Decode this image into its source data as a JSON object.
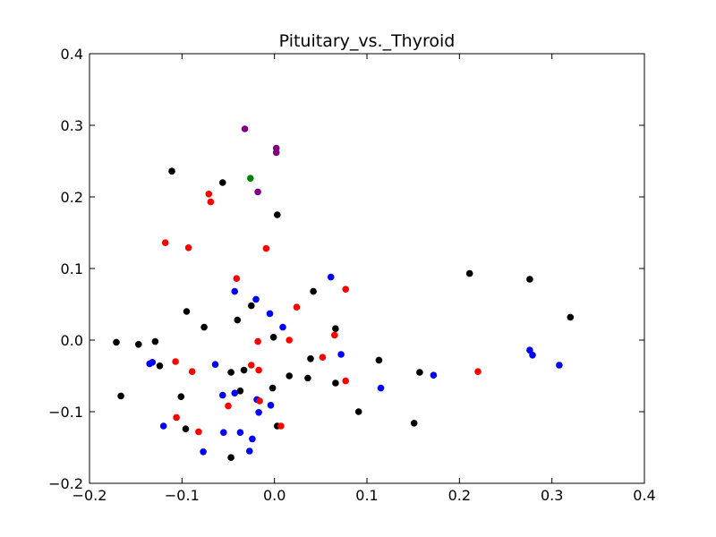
{
  "chart_data": {
    "type": "scatter",
    "title": "Pituitary_vs._Thyroid",
    "xlabel": "",
    "ylabel": "",
    "xlim": [
      -0.2,
      0.4
    ],
    "ylim": [
      -0.2,
      0.4
    ],
    "x_ticks": [
      "−0.2",
      "−0.1",
      "0.0",
      "0.1",
      "0.2",
      "0.3",
      "0.4"
    ],
    "y_ticks": [
      "−0.2",
      "−0.1",
      "0.0",
      "0.1",
      "0.2",
      "0.3",
      "0.4"
    ],
    "x_tick_values": [
      -0.2,
      -0.1,
      0.0,
      0.1,
      0.2,
      0.3,
      0.4
    ],
    "y_tick_values": [
      -0.2,
      -0.1,
      0.0,
      0.1,
      0.2,
      0.3,
      0.4
    ],
    "grid": false,
    "series": [
      {
        "color": "#000000",
        "points": [
          [
            -0.171,
            -0.003
          ],
          [
            -0.166,
            -0.078
          ],
          [
            -0.147,
            -0.006
          ],
          [
            -0.129,
            -0.002
          ],
          [
            -0.124,
            -0.036
          ],
          [
            -0.111,
            0.236
          ],
          [
            -0.101,
            -0.079
          ],
          [
            -0.096,
            -0.124
          ],
          [
            -0.095,
            0.04
          ],
          [
            -0.076,
            0.018
          ],
          [
            -0.056,
            0.22
          ],
          [
            -0.047,
            -0.045
          ],
          [
            -0.047,
            -0.164
          ],
          [
            -0.04,
            0.028
          ],
          [
            -0.037,
            -0.071
          ],
          [
            -0.033,
            -0.042
          ],
          [
            -0.025,
            0.048
          ],
          [
            -0.002,
            -0.067
          ],
          [
            -0.001,
            0.004
          ],
          [
            0.003,
            0.175
          ],
          [
            0.003,
            -0.12
          ],
          [
            0.016,
            -0.05
          ],
          [
            0.036,
            -0.053
          ],
          [
            0.039,
            -0.026
          ],
          [
            0.042,
            0.068
          ],
          [
            0.066,
            0.016
          ],
          [
            0.066,
            -0.06
          ],
          [
            0.091,
            -0.1
          ],
          [
            0.113,
            -0.028
          ],
          [
            0.151,
            -0.116
          ],
          [
            0.157,
            -0.045
          ],
          [
            0.211,
            0.093
          ],
          [
            0.276,
            0.085
          ],
          [
            0.32,
            0.032
          ]
        ]
      },
      {
        "color": "#0000ff",
        "points": [
          [
            -0.135,
            -0.033
          ],
          [
            -0.132,
            -0.031
          ],
          [
            -0.12,
            -0.12
          ],
          [
            -0.077,
            -0.156
          ],
          [
            -0.064,
            -0.034
          ],
          [
            -0.056,
            -0.077
          ],
          [
            -0.055,
            -0.129
          ],
          [
            -0.043,
            -0.074
          ],
          [
            -0.043,
            0.068
          ],
          [
            -0.037,
            -0.129
          ],
          [
            -0.027,
            -0.155
          ],
          [
            -0.024,
            -0.138
          ],
          [
            -0.02,
            0.057
          ],
          [
            -0.019,
            -0.083
          ],
          [
            -0.017,
            -0.101
          ],
          [
            -0.005,
            0.037
          ],
          [
            -0.004,
            -0.091
          ],
          [
            0.009,
            0.018
          ],
          [
            0.061,
            0.088
          ],
          [
            0.072,
            -0.02
          ],
          [
            0.115,
            -0.067
          ],
          [
            0.172,
            -0.049
          ],
          [
            0.276,
            -0.014
          ],
          [
            0.279,
            -0.021
          ],
          [
            0.308,
            -0.035
          ]
        ]
      },
      {
        "color": "#ff0000",
        "points": [
          [
            -0.118,
            0.136
          ],
          [
            -0.107,
            -0.03
          ],
          [
            -0.106,
            -0.108
          ],
          [
            -0.093,
            0.129
          ],
          [
            -0.089,
            -0.044
          ],
          [
            -0.082,
            -0.128
          ],
          [
            -0.071,
            0.204
          ],
          [
            -0.069,
            0.193
          ],
          [
            -0.05,
            -0.092
          ],
          [
            -0.041,
            0.086
          ],
          [
            -0.025,
            -0.035
          ],
          [
            -0.018,
            -0.002
          ],
          [
            -0.017,
            -0.042
          ],
          [
            -0.016,
            -0.085
          ],
          [
            -0.009,
            0.128
          ],
          [
            0.007,
            -0.12
          ],
          [
            0.016,
            0.0
          ],
          [
            0.024,
            0.046
          ],
          [
            0.052,
            -0.024
          ],
          [
            0.065,
            0.007
          ],
          [
            0.077,
            0.071
          ],
          [
            0.077,
            -0.057
          ],
          [
            0.22,
            -0.044
          ]
        ]
      },
      {
        "color": "#800080",
        "points": [
          [
            -0.032,
            0.295
          ],
          [
            0.002,
            0.268
          ],
          [
            0.002,
            0.262
          ],
          [
            -0.018,
            0.207
          ]
        ]
      },
      {
        "color": "#008000",
        "points": [
          [
            -0.026,
            0.226
          ]
        ]
      }
    ]
  }
}
